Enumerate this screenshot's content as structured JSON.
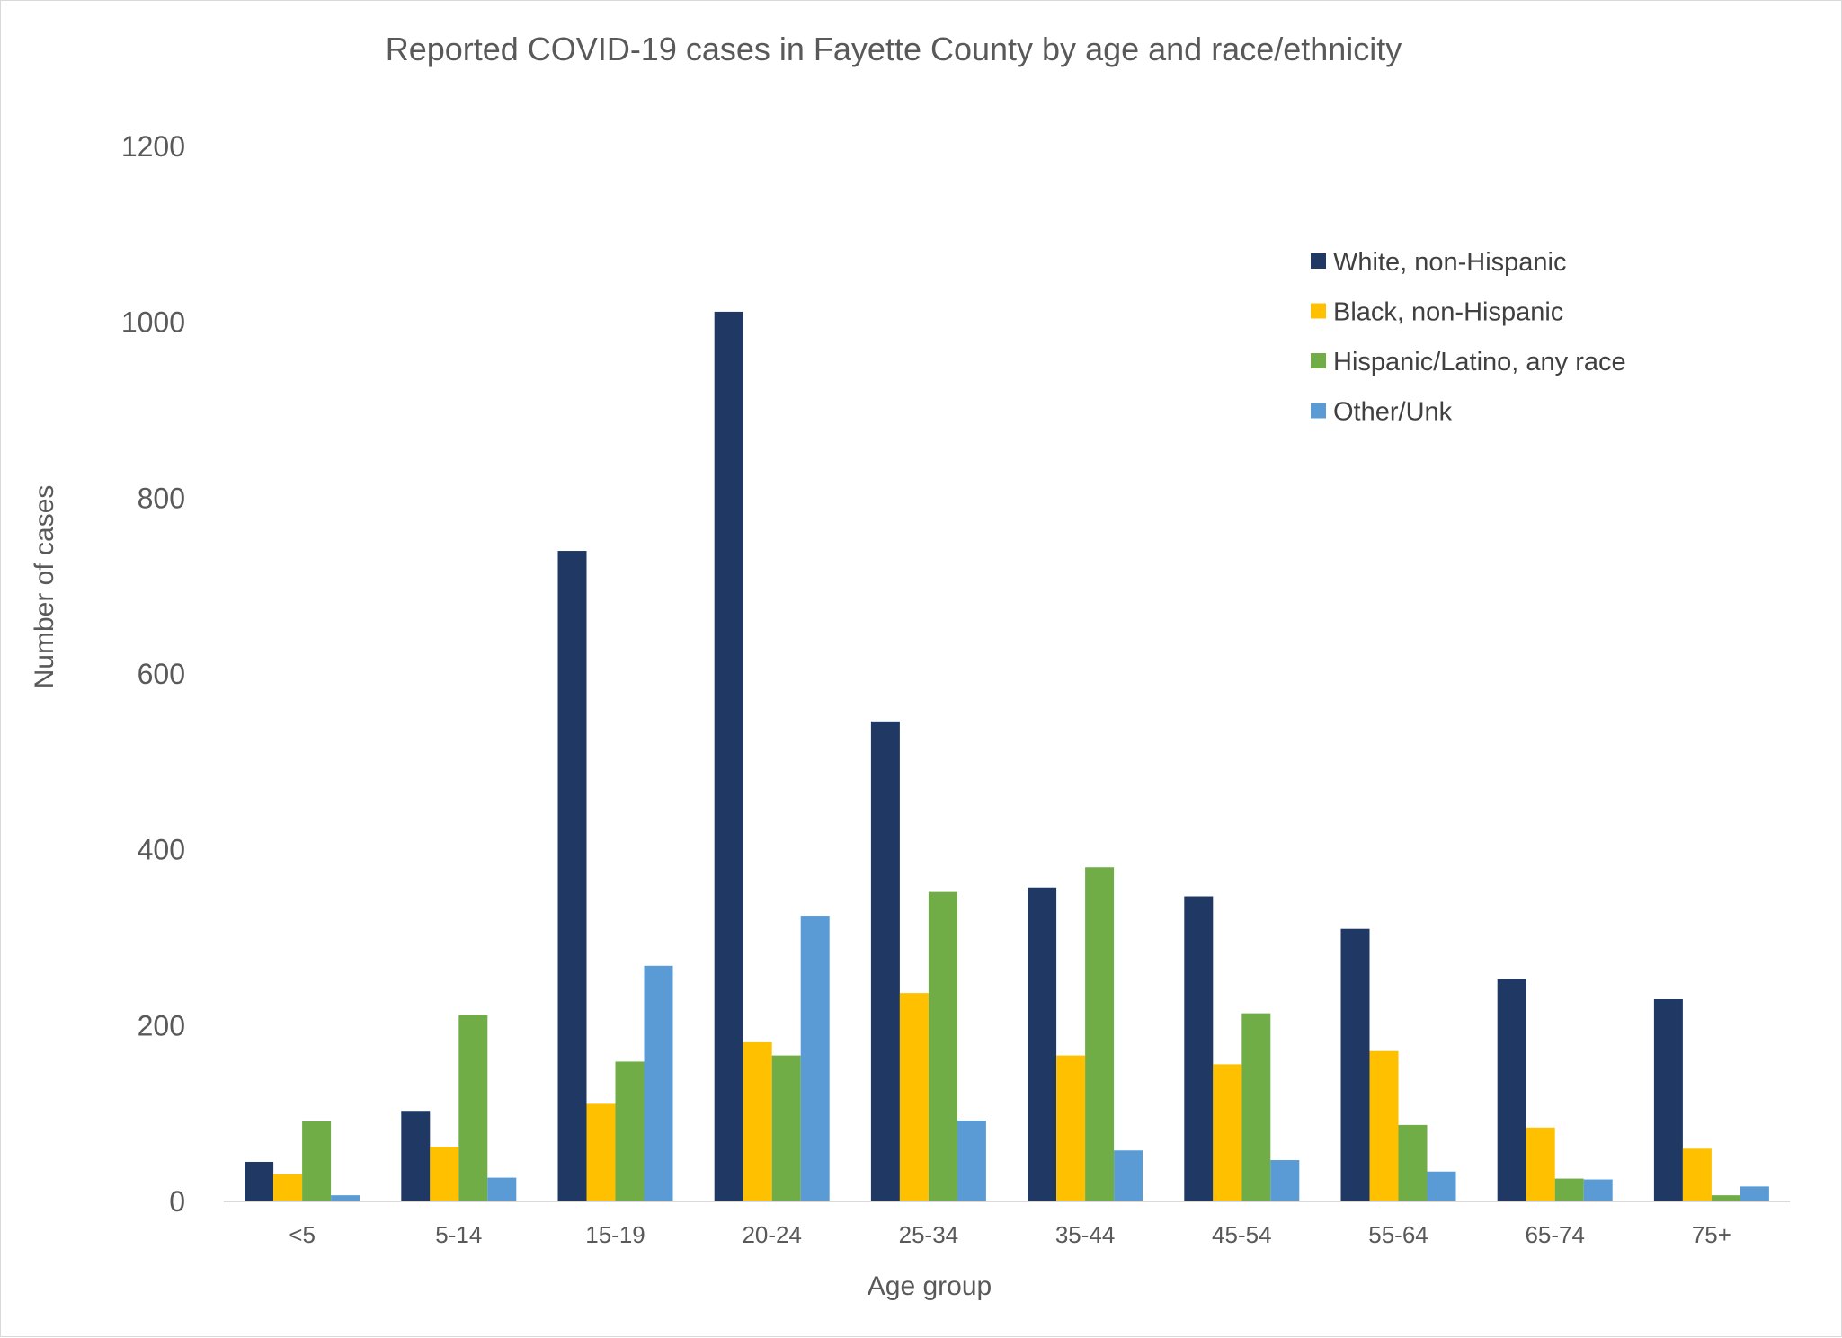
{
  "chart_data": {
    "type": "bar",
    "title": "Reported COVID-19 cases in Fayette County by age and race/ethnicity",
    "xlabel": "Age group",
    "ylabel": "Number of cases",
    "ylim": [
      0,
      1200
    ],
    "yticks": [
      "0",
      "200",
      "400",
      "600",
      "800",
      "1000",
      "1200"
    ],
    "grid": false,
    "legend_position": "top-right",
    "categories": [
      "<5",
      "5-14",
      "15-19",
      "20-24",
      "25-34",
      "35-44",
      "45-54",
      "55-64",
      "65-74",
      "75+"
    ],
    "series": [
      {
        "name": "White, non-Hispanic",
        "color": "#203864",
        "values": [
          45,
          103,
          740,
          1012,
          546,
          357,
          347,
          310,
          253,
          230
        ]
      },
      {
        "name": "Black, non-Hispanic",
        "color": "#FFC000",
        "values": [
          31,
          62,
          111,
          181,
          237,
          166,
          156,
          171,
          84,
          60
        ]
      },
      {
        "name": "Hispanic/Latino, any race",
        "color": "#70AD47",
        "values": [
          91,
          212,
          159,
          166,
          352,
          380,
          214,
          87,
          26,
          7
        ]
      },
      {
        "name": "Other/Unk",
        "color": "#5B9BD5",
        "values": [
          7,
          27,
          268,
          325,
          92,
          58,
          47,
          34,
          25,
          17
        ]
      }
    ]
  }
}
